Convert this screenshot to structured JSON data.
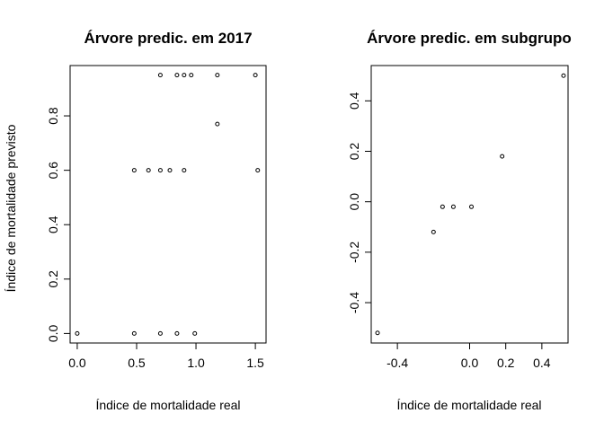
{
  "chart_data": [
    {
      "type": "scatter",
      "title": "Árvore predic. em 2017",
      "xlabel": "Índice de mortalidade real",
      "ylabel": "Índice de mortalidade previsto",
      "xlim": [
        -0.06,
        1.59
      ],
      "ylim": [
        -0.035,
        0.985
      ],
      "xticks": [
        0.0,
        0.5,
        1.0,
        1.5
      ],
      "xtick_labels": [
        "0.0",
        "0.5",
        "1.0",
        "1.5"
      ],
      "yticks": [
        0.0,
        0.2,
        0.4,
        0.6,
        0.8
      ],
      "ytick_labels": [
        "0.0",
        "0.2",
        "0.4",
        "0.6",
        "0.8"
      ],
      "grid": false,
      "points": {
        "x": [
          0.0,
          0.48,
          0.48,
          0.6,
          0.7,
          0.7,
          0.7,
          0.78,
          0.84,
          0.84,
          0.9,
          0.9,
          0.96,
          0.99,
          1.18,
          1.18,
          1.5,
          1.52
        ],
        "y": [
          0.0,
          0.6,
          0.0,
          0.6,
          0.95,
          0.6,
          0.0,
          0.6,
          0.95,
          0.0,
          0.95,
          0.6,
          0.95,
          0.0,
          0.95,
          0.77,
          0.95,
          0.6
        ]
      }
    },
    {
      "type": "scatter",
      "title": "Árvore predic. em subgrupo",
      "xlabel": "Índice de mortalidade real",
      "ylabel": "",
      "xlim": [
        -0.545,
        0.545
      ],
      "ylim": [
        -0.56,
        0.54
      ],
      "xticks": [
        -0.4,
        0.0,
        0.2,
        0.4
      ],
      "xtick_labels": [
        "-0.4",
        "0.0",
        "0.2",
        "0.4"
      ],
      "yticks": [
        -0.4,
        -0.2,
        0.0,
        0.2,
        0.4
      ],
      "ytick_labels": [
        "-0.4",
        "-0.2",
        "0.0",
        "0.2",
        "0.4"
      ],
      "grid": false,
      "points": {
        "x": [
          -0.51,
          -0.2,
          -0.15,
          -0.09,
          0.01,
          0.18,
          0.52
        ],
        "y": [
          -0.52,
          -0.12,
          -0.02,
          -0.02,
          -0.02,
          0.18,
          0.5
        ]
      }
    }
  ]
}
